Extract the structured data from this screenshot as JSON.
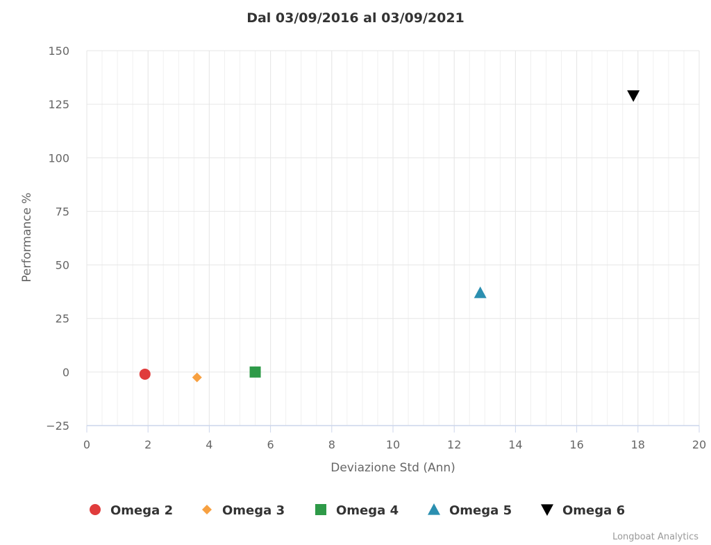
{
  "chart_data": {
    "type": "scatter",
    "title": "Dal 03/09/2016 al 03/09/2021",
    "xlabel": "Deviazione Std (Ann)",
    "ylabel": "Performance %",
    "xlim": [
      0,
      20
    ],
    "ylim": [
      -25,
      150
    ],
    "x_ticks": [
      0,
      2,
      4,
      6,
      8,
      10,
      12,
      14,
      16,
      18,
      20
    ],
    "y_ticks": [
      -25,
      0,
      25,
      50,
      75,
      100,
      125,
      150
    ],
    "y_tick_labels": [
      "−25",
      "0",
      "25",
      "50",
      "75",
      "100",
      "125",
      "150"
    ],
    "grid": true,
    "legend_position": "bottom",
    "series": [
      {
        "name": "Omega 2",
        "marker": "circle",
        "color": "#e03c3c",
        "x": 1.9,
        "y": -1
      },
      {
        "name": "Omega 3",
        "marker": "diamond",
        "color": "#f7a040",
        "x": 3.6,
        "y": -2.5
      },
      {
        "name": "Omega 4",
        "marker": "square",
        "color": "#2e9a48",
        "x": 5.5,
        "y": 0
      },
      {
        "name": "Omega 5",
        "marker": "triangle-up",
        "color": "#2b8fb0",
        "x": 12.85,
        "y": 37
      },
      {
        "name": "Omega 6",
        "marker": "triangle-down",
        "color": "#000000",
        "x": 17.85,
        "y": 129
      }
    ]
  },
  "credits": "Longboat Analytics"
}
